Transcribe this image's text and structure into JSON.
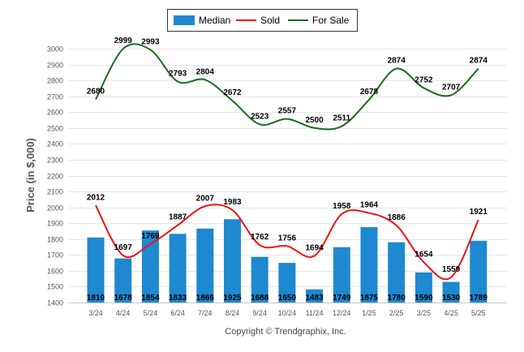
{
  "chart_data": {
    "type": "bar",
    "categories": [
      "3/24",
      "4/24",
      "5/24",
      "6/24",
      "7/24",
      "8/24",
      "9/24",
      "10/24",
      "11/24",
      "12/24",
      "1/25",
      "2/25",
      "3/25",
      "4/25",
      "5/25"
    ],
    "series": [
      {
        "name": "Median",
        "type": "bar",
        "color": "#1e88d0",
        "values": [
          1810,
          1678,
          1854,
          1833,
          1866,
          1925,
          1688,
          1650,
          1483,
          1749,
          1875,
          1780,
          1590,
          1530,
          1789
        ]
      },
      {
        "name": "Sold",
        "type": "line",
        "color": "#ee1111",
        "values": [
          2012,
          1697,
          1769,
          1887,
          2007,
          1983,
          1762,
          1756,
          1694,
          1958,
          1964,
          1886,
          1654,
          1559,
          1921
        ]
      },
      {
        "name": "For Sale",
        "type": "line",
        "color": "#1a6b1a",
        "values": [
          2680,
          2999,
          2993,
          2793,
          2804,
          2672,
          2523,
          2557,
          2500,
          2511,
          2678,
          2874,
          2752,
          2707,
          2874
        ]
      }
    ],
    "ylabel": "Price (in $,000)",
    "ylim": [
      1400,
      3000
    ],
    "ytick_step": 100,
    "grid": true,
    "legend_position": "top-center",
    "credit": "Copyright © Trendgraphix, Inc."
  }
}
